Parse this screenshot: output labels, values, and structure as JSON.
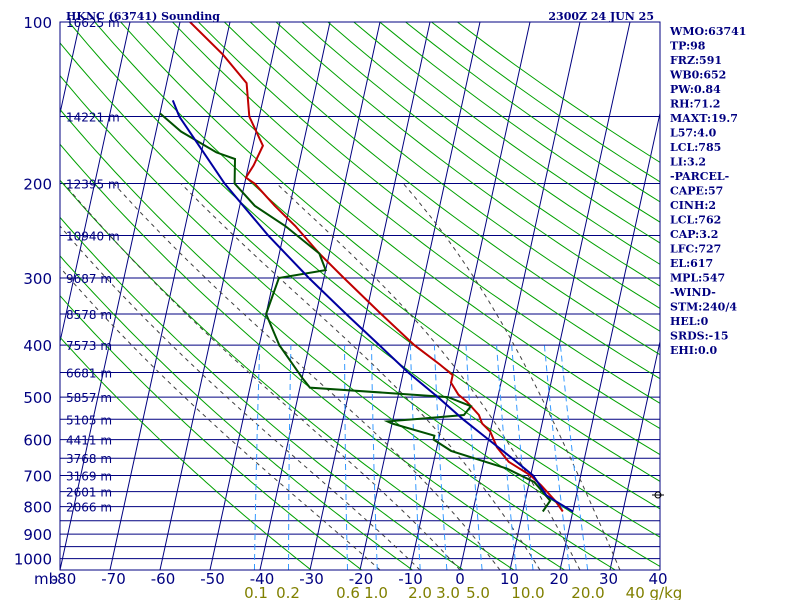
{
  "header": {
    "title": "HKNC (63741) Sounding",
    "time": "2300Z 24 JUN 25"
  },
  "stats": [
    "WMO:63741",
    "TP:98",
    "FRZ:591",
    "WB0:652",
    "PW:0.84",
    "RH:71.2",
    "MAXT:19.7",
    "L57:4.0",
    "LCL:785",
    "LI:3.2",
    "-PARCEL-",
    "CAPE:57",
    "CINH:2",
    "LCL:762",
    "CAP:3.2",
    "LFC:727",
    "EL:617",
    "MPL:547",
    "-WIND-",
    "STM:240/4",
    "HEL:0",
    "SRDS:-15",
    "EHI:0.0"
  ],
  "colors": {
    "frame": "#000080",
    "isotherm": "#000080",
    "isobar": "#000080",
    "dry_adiabat": "#00a000",
    "moist_adiabat": "#404040",
    "mixing_ratio": "#3399ff",
    "temperature": "#c00000",
    "dewpoint": "#005000",
    "parcel": "#0000a0"
  },
  "chart_data": {
    "type": "line",
    "subtype": "skew-t log-p sounding",
    "pressure_unit_label": "mb",
    "y_axis": {
      "scale": "log",
      "range": [
        1000,
        100
      ]
    },
    "x_axis": {
      "range": [
        -80,
        40
      ],
      "skewed": true
    },
    "pressure_ticks": [
      100,
      200,
      300,
      400,
      500,
      600,
      700,
      800,
      900,
      1000
    ],
    "temperature_ticks": [
      "-80",
      "-70",
      "-60",
      "-50",
      "-40",
      "-30",
      "-20",
      "-10",
      "0",
      "10",
      "20",
      "30",
      "40"
    ],
    "mixing_ratio_ticks": [
      "0.1",
      "0.2",
      "0.6",
      "1.0",
      "2.0",
      "3.0",
      "5.0",
      "10.0",
      "20.0",
      "40 g/kg"
    ],
    "height_labels": [
      {
        "p": 100,
        "text": "16625 m"
      },
      {
        "p": 150,
        "text": "14221 m"
      },
      {
        "p": 200,
        "text": "12395 m"
      },
      {
        "p": 250,
        "text": "10940 m"
      },
      {
        "p": 300,
        "text": "9687 m"
      },
      {
        "p": 350,
        "text": "8578 m"
      },
      {
        "p": 400,
        "text": "7573 m"
      },
      {
        "p": 450,
        "text": "6681 m"
      },
      {
        "p": 500,
        "text": "5857 m"
      },
      {
        "p": 550,
        "text": "5105 m"
      },
      {
        "p": 600,
        "text": "4411 m"
      },
      {
        "p": 650,
        "text": "3768 m"
      },
      {
        "p": 700,
        "text": "3169 m"
      },
      {
        "p": 750,
        "text": "2601 m"
      },
      {
        "p": 800,
        "text": "2066 m"
      }
    ],
    "series": [
      {
        "key": "temperature",
        "points": [
          {
            "p": 817,
            "t": 18
          },
          {
            "p": 780,
            "t": 16
          },
          {
            "p": 730,
            "t": 12.5
          },
          {
            "p": 700,
            "t": 10
          },
          {
            "p": 660,
            "t": 5
          },
          {
            "p": 620,
            "t": 2
          },
          {
            "p": 580,
            "t": 0
          },
          {
            "p": 560,
            "t": -2
          },
          {
            "p": 540,
            "t": -3
          },
          {
            "p": 510,
            "t": -6
          },
          {
            "p": 495,
            "t": -8
          },
          {
            "p": 470,
            "t": -10
          },
          {
            "p": 455,
            "t": -10
          },
          {
            "p": 435,
            "t": -13
          },
          {
            "p": 400,
            "t": -19
          },
          {
            "p": 350,
            "t": -27
          },
          {
            "p": 300,
            "t": -36
          },
          {
            "p": 270,
            "t": -42
          },
          {
            "p": 240,
            "t": -48
          },
          {
            "p": 220,
            "t": -53
          },
          {
            "p": 200,
            "t": -58
          },
          {
            "p": 195,
            "t": -60
          },
          {
            "p": 185,
            "t": -59
          },
          {
            "p": 170,
            "t": -58
          },
          {
            "p": 150,
            "t": -62
          },
          {
            "p": 130,
            "t": -64
          },
          {
            "p": 115,
            "t": -70
          },
          {
            "p": 100,
            "t": -78
          }
        ]
      },
      {
        "key": "dewpoint",
        "points": [
          {
            "p": 817,
            "t": 14
          },
          {
            "p": 780,
            "t": 15
          },
          {
            "p": 720,
            "t": 11
          },
          {
            "p": 680,
            "t": 5
          },
          {
            "p": 630,
            "t": -7
          },
          {
            "p": 600,
            "t": -11
          },
          {
            "p": 590,
            "t": -11
          },
          {
            "p": 560,
            "t": -20
          },
          {
            "p": 555,
            "t": -21
          },
          {
            "p": 548,
            "t": -14
          },
          {
            "p": 540,
            "t": -6
          },
          {
            "p": 520,
            "t": -5
          },
          {
            "p": 500,
            "t": -10
          },
          {
            "p": 480,
            "t": -38
          },
          {
            "p": 460,
            "t": -40
          },
          {
            "p": 400,
            "t": -46
          },
          {
            "p": 350,
            "t": -50
          },
          {
            "p": 300,
            "t": -49
          },
          {
            "p": 290,
            "t": -40
          },
          {
            "p": 270,
            "t": -42
          },
          {
            "p": 240,
            "t": -50
          },
          {
            "p": 220,
            "t": -57
          },
          {
            "p": 200,
            "t": -62
          },
          {
            "p": 180,
            "t": -63
          },
          {
            "p": 175,
            "t": -67
          },
          {
            "p": 160,
            "t": -75
          },
          {
            "p": 148,
            "t": -80
          }
        ]
      },
      {
        "key": "parcel",
        "points": [
          {
            "p": 817,
            "t": 20
          },
          {
            "p": 785,
            "t": 16.5
          },
          {
            "p": 762,
            "t": 14
          },
          {
            "p": 700,
            "t": 10.5
          },
          {
            "p": 650,
            "t": 5.5
          },
          {
            "p": 600,
            "t": 0
          },
          {
            "p": 550,
            "t": -6
          },
          {
            "p": 500,
            "t": -12
          },
          {
            "p": 450,
            "t": -19
          },
          {
            "p": 400,
            "t": -26
          },
          {
            "p": 350,
            "t": -34
          },
          {
            "p": 300,
            "t": -43
          },
          {
            "p": 250,
            "t": -53
          },
          {
            "p": 200,
            "t": -64
          },
          {
            "p": 150,
            "t": -76
          },
          {
            "p": 140,
            "t": -78
          }
        ]
      }
    ]
  }
}
